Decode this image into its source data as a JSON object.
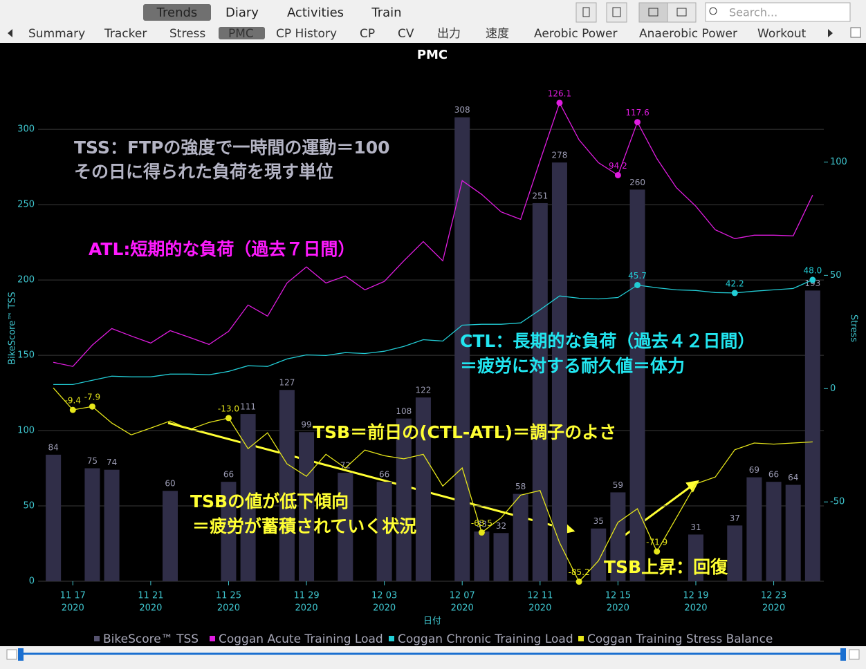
{
  "toolbar": {
    "tabs": [
      "Trends",
      "Diary",
      "Activities",
      "Train"
    ],
    "search_placeholder": "Search...",
    "subtabs": [
      "Summary",
      "Tracker",
      "Stress",
      "PMC",
      "CP History",
      "CP",
      "CV",
      "出力",
      "速度",
      "Aerobic Power",
      "Anaerobic Power",
      "Workout"
    ]
  },
  "chart_data": {
    "type": "combo",
    "title": "PMC",
    "x_label": "日付",
    "y_label": "BikeScore™ TSS",
    "y2_label": "Stress",
    "x": [
      "2020-11-16",
      "2020-11-17",
      "2020-11-18",
      "2020-11-19",
      "2020-11-20",
      "2020-11-21",
      "2020-11-22",
      "2020-11-23",
      "2020-11-24",
      "2020-11-25",
      "2020-11-26",
      "2020-11-27",
      "2020-11-28",
      "2020-11-29",
      "2020-11-30",
      "2020-12-01",
      "2020-12-02",
      "2020-12-03",
      "2020-12-04",
      "2020-12-05",
      "2020-12-06",
      "2020-12-07",
      "2020-12-08",
      "2020-12-09",
      "2020-12-10",
      "2020-12-11",
      "2020-12-12",
      "2020-12-13",
      "2020-12-14",
      "2020-12-15",
      "2020-12-16",
      "2020-12-17",
      "2020-12-18",
      "2020-12-19",
      "2020-12-20",
      "2020-12-21",
      "2020-12-22",
      "2020-12-23",
      "2020-12-24",
      "2020-12-25"
    ],
    "xlim": [
      "2020-11-15",
      "2020-12-26"
    ],
    "xticks": [
      {
        "value": "2020-11-17",
        "label": "11 17",
        "sublabel": "2020"
      },
      {
        "value": "2020-11-21",
        "label": "11 21",
        "sublabel": "2020"
      },
      {
        "value": "2020-11-25",
        "label": "11 25",
        "sublabel": "2020"
      },
      {
        "value": "2020-11-29",
        "label": "11 29",
        "sublabel": "2020"
      },
      {
        "value": "2020-12-03",
        "label": "12 03",
        "sublabel": "2020"
      },
      {
        "value": "2020-12-07",
        "label": "12 07",
        "sublabel": "2020"
      },
      {
        "value": "2020-12-11",
        "label": "12 11",
        "sublabel": "2020"
      },
      {
        "value": "2020-12-15",
        "label": "12 15",
        "sublabel": "2020"
      },
      {
        "value": "2020-12-19",
        "label": "12 19",
        "sublabel": "2020"
      },
      {
        "value": "2020-12-23",
        "label": "12 23",
        "sublabel": "2020"
      }
    ],
    "ylim": [
      0,
      340
    ],
    "yticks": [
      0,
      50,
      100,
      150,
      200,
      250,
      300
    ],
    "y2lim": [
      -85,
      141
    ],
    "y2ticks": [
      -50,
      0,
      50,
      100
    ],
    "grid": true,
    "series": [
      {
        "name": "BikeScore™ TSS",
        "type": "bar",
        "color": "#302e48",
        "values": [
          84,
          null,
          75,
          74,
          null,
          null,
          60,
          null,
          null,
          66,
          111,
          null,
          127,
          99,
          null,
          72,
          null,
          66,
          108,
          122,
          null,
          308,
          33,
          32,
          58,
          251,
          278,
          null,
          35,
          59,
          260,
          null,
          null,
          31,
          null,
          37,
          69,
          66,
          64,
          193
        ]
      },
      {
        "name": "Coggan Acute Training Load",
        "type": "line",
        "axis": "y2",
        "color": "#e01ce0",
        "values": [
          11.6,
          9.8,
          19.2,
          26.5,
          23.2,
          20.1,
          25.6,
          22.6,
          19.5,
          25.3,
          36.9,
          32,
          46.6,
          53.7,
          46.6,
          49.7,
          43.6,
          47.3,
          56.4,
          64.9,
          56.4,
          91.8,
          85.7,
          78,
          74.7,
          100.6,
          126.1,
          109.8,
          99.7,
          94.2,
          117.6,
          101.5,
          88.7,
          80.5,
          70.1,
          66.2,
          67.7,
          67.7,
          67.4,
          85.4
        ],
        "value_labels": [
          null,
          null,
          null,
          null,
          null,
          null,
          null,
          null,
          null,
          null,
          null,
          null,
          null,
          null,
          null,
          null,
          null,
          null,
          null,
          null,
          null,
          null,
          null,
          null,
          null,
          null,
          "126.1",
          null,
          null,
          "94.2",
          "117.6",
          null,
          null,
          null,
          null,
          null,
          null,
          null,
          null,
          null
        ]
      },
      {
        "name": "Coggan Chronic Training Load",
        "type": "line",
        "axis": "y2",
        "color": "#22cdd6",
        "values": [
          1.8,
          1.8,
          3.7,
          5.5,
          5.2,
          5.2,
          6.4,
          6.4,
          6.1,
          7.6,
          10.1,
          9.8,
          13.1,
          14.9,
          14.6,
          15.9,
          15.5,
          16.5,
          18.6,
          21.6,
          21,
          28,
          28.4,
          28.4,
          29,
          34.8,
          40.9,
          39.9,
          39.6,
          40.2,
          45.7,
          44.5,
          43.6,
          43.3,
          42.4,
          42.2,
          43,
          43.6,
          44.2,
          48.0
        ],
        "value_labels": [
          null,
          null,
          null,
          null,
          null,
          null,
          null,
          null,
          null,
          null,
          null,
          null,
          null,
          null,
          null,
          null,
          null,
          null,
          null,
          null,
          null,
          null,
          null,
          null,
          null,
          null,
          null,
          null,
          null,
          null,
          "45.7",
          null,
          null,
          null,
          null,
          "42.2",
          null,
          null,
          null,
          "48.0"
        ]
      },
      {
        "name": "Coggan Training Stress Balance",
        "type": "line",
        "axis": "y2",
        "color": "#e6e61a",
        "values": [
          0.3,
          -9.4,
          -7.9,
          -15.2,
          -20.4,
          -17.4,
          -14.3,
          -18,
          -14.9,
          -13.0,
          -26.5,
          -19.5,
          -33.2,
          -38.7,
          -29,
          -35,
          -27.1,
          -29.6,
          -31,
          -29,
          -43,
          -35,
          -63.5,
          -57,
          -47,
          -45,
          -68,
          -85.2,
          -76,
          -59,
          -53,
          -71.9,
          -57,
          -42,
          -39,
          -27,
          -24,
          -24.5,
          -24,
          -23.5
        ],
        "value_labels": [
          null,
          "-9.4",
          "-7.9",
          null,
          null,
          null,
          null,
          null,
          null,
          "-13.0",
          null,
          null,
          null,
          null,
          null,
          null,
          null,
          null,
          null,
          null,
          null,
          null,
          "-63.5",
          null,
          null,
          null,
          null,
          "-85.2",
          null,
          null,
          null,
          "-71.9",
          null,
          null,
          null,
          null,
          null,
          null,
          null,
          null
        ]
      }
    ],
    "annotations": [
      {
        "text": "TSS：FTPの強度で一時間の運動＝100",
        "color": "#b4b4c4"
      },
      {
        "text": "その日に得られた負荷を現す単位",
        "color": "#b4b4c4"
      },
      {
        "text": "ATL:短期的な負荷（過去７日間）",
        "color": "#ff1aff"
      },
      {
        "text": "CTL：長期的な負荷（過去４２日間）",
        "color": "#22e6f0"
      },
      {
        "text": "＝疲労に対する耐久値＝体力",
        "color": "#22e6f0"
      },
      {
        "text": "TSB＝前日の(CTL-ATL)＝調子のよさ",
        "color": "#ffff33"
      },
      {
        "text": "TSBの値が低下傾向",
        "color": "#ffff33"
      },
      {
        "text": "＝疲労が蓄積されていく状況",
        "color": "#ffff33"
      },
      {
        "text": "TSB上昇：回復",
        "color": "#ffff33"
      }
    ]
  }
}
